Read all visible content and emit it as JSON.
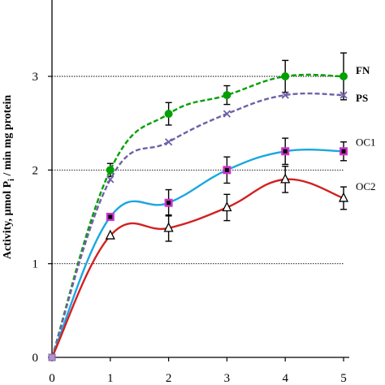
{
  "chart_data": {
    "type": "line",
    "ylabel": "Activity, µmol P",
    "ylabel_sub": "i",
    "ylabel_rest": " / min mg protein",
    "xlim": [
      0,
      5
    ],
    "ylim": [
      0,
      3.75
    ],
    "x_ticks": [
      "0",
      "1",
      "2",
      "3",
      "4",
      "5"
    ],
    "y_ticks": [
      "0",
      "1",
      "2",
      "3"
    ],
    "reference_lines": [
      1,
      2,
      3
    ],
    "series": [
      {
        "name": "FN",
        "color": "#00a000",
        "marker": "circle",
        "dashed": true,
        "x": [
          0,
          1,
          2,
          3,
          4,
          5
        ],
        "values": [
          0,
          2.0,
          2.6,
          2.8,
          3.0,
          3.0
        ],
        "errors": [
          0,
          0.07,
          0.12,
          0.1,
          0.17,
          0.25
        ]
      },
      {
        "name": "PS",
        "color": "#7060a8",
        "marker": "x",
        "dashed": true,
        "x": [
          0,
          1,
          2,
          3,
          4,
          5
        ],
        "values": [
          0,
          1.9,
          2.3,
          2.6,
          2.8,
          2.8
        ],
        "errors": [
          0,
          0,
          0,
          0,
          0,
          0
        ]
      },
      {
        "name": "OC1",
        "color": "#1aa7e0",
        "marker": "square",
        "dashed": false,
        "x": [
          0,
          1,
          2,
          3,
          4,
          5
        ],
        "values": [
          0,
          1.5,
          1.65,
          2.0,
          2.2,
          2.2
        ],
        "errors": [
          0,
          0,
          0.14,
          0.14,
          0.14,
          0.1
        ]
      },
      {
        "name": "OC2",
        "color": "#d42020",
        "marker": "triangle",
        "dashed": false,
        "x": [
          0,
          1,
          2,
          3,
          4,
          5
        ],
        "values": [
          0,
          1.3,
          1.38,
          1.6,
          1.9,
          1.7
        ],
        "errors": [
          0,
          0,
          0.14,
          0.14,
          0.14,
          0.12
        ]
      }
    ]
  }
}
